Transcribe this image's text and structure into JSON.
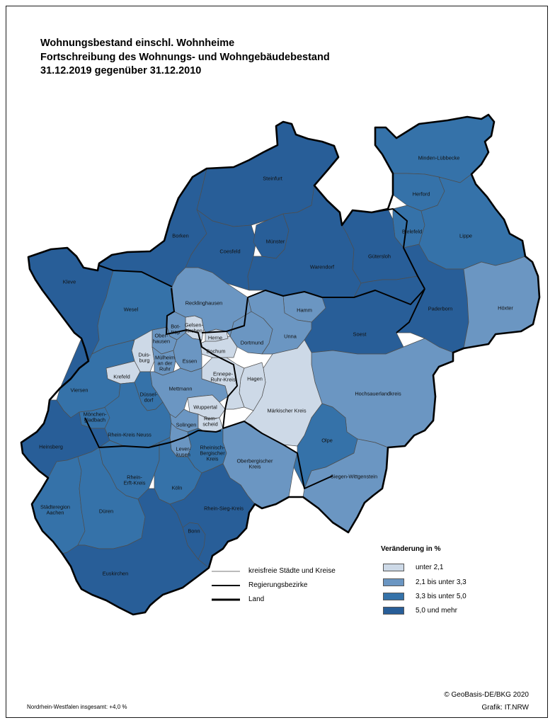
{
  "title_lines": [
    "Wohnungsbestand einschl. Wohnheime",
    "Fortschreibung des Wohnungs- und Wohngebäudebestand",
    "31.12.2019 gegenüber 31.12.2010"
  ],
  "colors": {
    "c1": "#cdd9e7",
    "c2": "#6b96c2",
    "c3": "#3572a9",
    "c4": "#285e98"
  },
  "legend": {
    "title": "Veränderung in %",
    "classes": [
      {
        "label": "unter 2,1",
        "color": "#cdd9e7"
      },
      {
        "label": "2,1 bis unter 3,3",
        "color": "#6b96c2"
      },
      {
        "label": "3,3 bis unter 5,0",
        "color": "#3572a9"
      },
      {
        "label": "5,0 und mehr",
        "color": "#285e98"
      }
    ]
  },
  "line_legend": [
    {
      "label": "kreisfreie Städte und Kreise"
    },
    {
      "label": "Regierungsbezirke"
    },
    {
      "label": "Land"
    }
  ],
  "regions": [
    {
      "id": "steinfurt",
      "label": "Steinfurt",
      "class": 4
    },
    {
      "id": "borken",
      "label": "Borken",
      "class": 4
    },
    {
      "id": "coesfeld",
      "label": "Coesfeld",
      "class": 4
    },
    {
      "id": "muenster",
      "label": "Münster",
      "class": 4
    },
    {
      "id": "warendorf",
      "label": "Warendorf",
      "class": 4
    },
    {
      "id": "minden",
      "label": "Minden-Lübbecke",
      "class": 3
    },
    {
      "id": "herford",
      "label": "Herford",
      "class": 3
    },
    {
      "id": "bielefeld",
      "label": "Bielefeld",
      "class": 3
    },
    {
      "id": "lippe",
      "label": "Lippe",
      "class": 3
    },
    {
      "id": "guetersloh",
      "label": "Gütersloh",
      "class": 4
    },
    {
      "id": "paderborn",
      "label": "Paderborn",
      "class": 4
    },
    {
      "id": "hoexter",
      "label": "Höxter",
      "class": 2
    },
    {
      "id": "soest",
      "label": "Soest",
      "class": 4
    },
    {
      "id": "hamm",
      "label": "Hamm",
      "class": 2
    },
    {
      "id": "unna",
      "label": "Unna",
      "class": 2
    },
    {
      "id": "dortmund",
      "label": "Dortmund",
      "class": 2
    },
    {
      "id": "hochsauerland",
      "label": "Hochsauerlandkreis",
      "class": 2
    },
    {
      "id": "maerkischer",
      "label": "Märkischer Kreis",
      "class": 1
    },
    {
      "id": "hagen",
      "label": "Hagen",
      "class": 1
    },
    {
      "id": "ennepe",
      "label": "Ennepe-\nRuhr-Kreis",
      "class": 1
    },
    {
      "id": "bochum",
      "label": "Bochum",
      "class": 1
    },
    {
      "id": "herne",
      "label": "Herne",
      "class": 1
    },
    {
      "id": "gelsenkirchen",
      "label": "Gelsen-\nkirchen",
      "class": 1
    },
    {
      "id": "recklinghausen",
      "label": "Recklinghausen",
      "class": 2
    },
    {
      "id": "bottrop",
      "label": "Bot-\ntrop",
      "class": 2
    },
    {
      "id": "oberhausen",
      "label": "Ober-\nhausen",
      "class": 2
    },
    {
      "id": "kleve",
      "label": "Kleve",
      "class": 4
    },
    {
      "id": "wesel",
      "label": "Wesel",
      "class": 3
    },
    {
      "id": "duisburg",
      "label": "Duis-\nburg",
      "class": 1
    },
    {
      "id": "muelheim",
      "label": "Mülheim\nan der\nRuhr",
      "class": 2
    },
    {
      "id": "essen",
      "label": "Essen",
      "class": 2
    },
    {
      "id": "krefeld",
      "label": "Krefeld",
      "class": 1
    },
    {
      "id": "viersen",
      "label": "Viersen",
      "class": 3
    },
    {
      "id": "mettmann",
      "label": "Mettmann",
      "class": 2
    },
    {
      "id": "duesseldorf",
      "label": "Düssel-\ndorf",
      "class": 3
    },
    {
      "id": "wuppertal",
      "label": "Wuppertal",
      "class": 1
    },
    {
      "id": "solingen",
      "label": "Solingen",
      "class": 2
    },
    {
      "id": "remscheid",
      "label": "Rem-\nscheid",
      "class": 1
    },
    {
      "id": "mgladbach",
      "label": "Mönchen-\ngladbach",
      "class": 3
    },
    {
      "id": "rheinkreisneuss",
      "label": "Rhein-Kreis Neuss",
      "class": 3
    },
    {
      "id": "heinsberg",
      "label": "Heinsberg",
      "class": 4
    },
    {
      "id": "leverkusen",
      "label": "Lever-\nkusen",
      "class": 2
    },
    {
      "id": "rheinberg",
      "label": "Rheinisch-\nBergischer\nKreis",
      "class": 3
    },
    {
      "id": "oberberg",
      "label": "Oberbergischer\nKreis",
      "class": 2
    },
    {
      "id": "olpe",
      "label": "Olpe",
      "class": 3
    },
    {
      "id": "siegen",
      "label": "Siegen-Wittgenstein",
      "class": 2
    },
    {
      "id": "rheinerft",
      "label": "Rhein-\nErft-Kreis",
      "class": 3
    },
    {
      "id": "koeln",
      "label": "Köln",
      "class": 3
    },
    {
      "id": "aachen",
      "label": "Städteregion\nAachen",
      "class": 3
    },
    {
      "id": "dueren",
      "label": "Düren",
      "class": 3
    },
    {
      "id": "rheinsieg",
      "label": "Rhein-Sieg-Kreis",
      "class": 4
    },
    {
      "id": "bonn",
      "label": "Bonn",
      "class": 4
    },
    {
      "id": "euskirchen",
      "label": "Euskirchen",
      "class": 4
    }
  ],
  "footer": {
    "copyright": "© GeoBasis-DE/BKG 2020",
    "credit": "Grafik: IT.NRW",
    "total": "Nordrhein-Westfalen insgesamt: +4,0 %"
  }
}
